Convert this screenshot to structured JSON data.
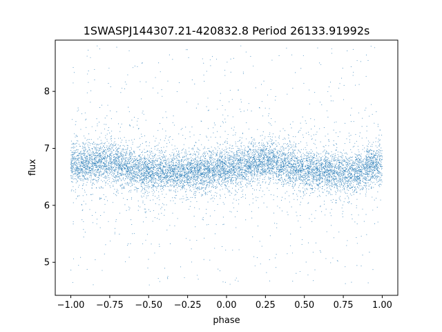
{
  "chart_data": {
    "type": "scatter",
    "title": "1SWASPJ144307.21-420832.8 Period 26133.91992s",
    "xlabel": "phase",
    "ylabel": "flux",
    "xlim": [
      -1.1,
      1.1
    ],
    "ylim": [
      4.42,
      8.9
    ],
    "xticks": [
      -1.0,
      -0.75,
      -0.5,
      -0.25,
      0.0,
      0.25,
      0.5,
      0.75,
      1.0
    ],
    "xtick_labels": [
      "−1.00",
      "−0.75",
      "−0.50",
      "−0.25",
      "0.00",
      "0.25",
      "0.50",
      "0.75",
      "1.00"
    ],
    "yticks": [
      5,
      6,
      7,
      8
    ],
    "ytick_labels": [
      "5",
      "6",
      "7",
      "8"
    ],
    "grid": false,
    "marker_color": "#1f77b4",
    "x_range_observed": [
      -1.0,
      1.0
    ],
    "y_range_observed": [
      4.6,
      8.8
    ],
    "approx_point_count": 40000,
    "trend_samples": {
      "phase": [
        -1.0,
        -0.75,
        -0.5,
        -0.25,
        0.0,
        0.25,
        0.5,
        0.75,
        1.0
      ],
      "flux_median": [
        6.72,
        6.75,
        6.6,
        6.58,
        6.65,
        6.78,
        6.62,
        6.55,
        6.72
      ]
    }
  }
}
